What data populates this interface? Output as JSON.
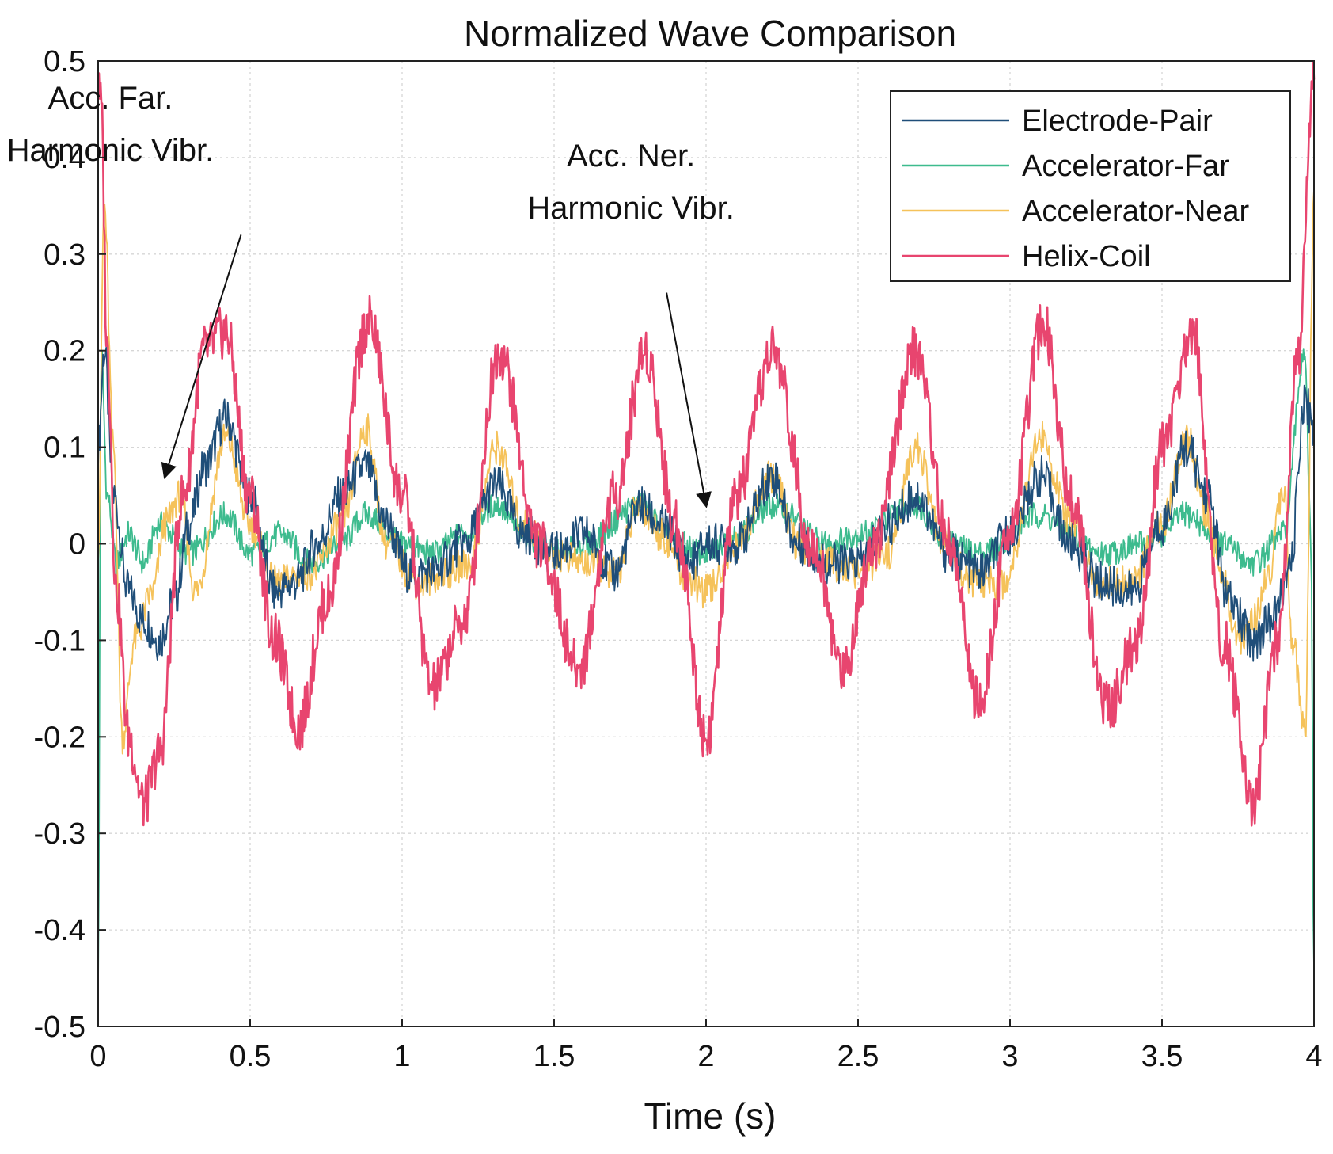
{
  "chart_data": {
    "type": "line",
    "title": "Normalized Wave Comparison",
    "xlabel": "Time (s)",
    "ylabel": "",
    "xlim": [
      0,
      4
    ],
    "ylim": [
      -0.5,
      0.5
    ],
    "grid": true,
    "legend_position": "top-right",
    "x_ticks": [
      0,
      0.5,
      1,
      1.5,
      2,
      2.5,
      3,
      3.5,
      4
    ],
    "x_tick_labels": [
      "0",
      "0.5",
      "1",
      "1.5",
      "2",
      "2.5",
      "3",
      "3.5",
      "4"
    ],
    "y_ticks": [
      0.5,
      0.4,
      0.3,
      0.2,
      0.1,
      0,
      -0.1,
      -0.2,
      -0.3,
      -0.4,
      -0.5
    ],
    "y_tick_labels": [
      "0.5",
      "0.4",
      "0.3",
      "0.2",
      "0.1",
      "0",
      "-0.1",
      "-0.2",
      "-0.3",
      "-0.4",
      "-0.5"
    ],
    "series": [
      {
        "name": "Electrode-Pair",
        "color": "#1f4e79",
        "x": [
          0,
          0.02,
          0.05,
          0.1,
          0.15,
          0.2,
          0.25,
          0.3,
          0.35,
          0.42,
          0.5,
          0.58,
          0.65,
          0.72,
          0.8,
          0.88,
          0.95,
          1.02,
          1.1,
          1.2,
          1.31,
          1.4,
          1.5,
          1.6,
          1.7,
          1.78,
          1.85,
          1.95,
          2.0,
          2.1,
          2.22,
          2.3,
          2.4,
          2.5,
          2.6,
          2.69,
          2.8,
          2.9,
          3.0,
          3.1,
          3.2,
          3.3,
          3.4,
          3.5,
          3.58,
          3.65,
          3.72,
          3.8,
          3.86,
          3.92,
          3.97,
          4.0
        ],
        "values": [
          0.1,
          0.2,
          0.05,
          -0.05,
          -0.08,
          -0.1,
          -0.06,
          0.02,
          0.08,
          0.13,
          0.05,
          -0.05,
          -0.04,
          0.0,
          0.05,
          0.08,
          0.02,
          -0.03,
          -0.03,
          0.0,
          0.06,
          0.01,
          -0.01,
          0.01,
          -0.03,
          0.04,
          0.02,
          -0.02,
          0.0,
          0.0,
          0.07,
          0.0,
          -0.02,
          -0.02,
          0.02,
          0.05,
          -0.01,
          -0.03,
          0.01,
          0.07,
          0.0,
          -0.04,
          -0.05,
          0.02,
          0.1,
          0.05,
          -0.06,
          -0.1,
          -0.08,
          -0.03,
          0.15,
          0.12
        ]
      },
      {
        "name": "Accelerator-Far",
        "color": "#3dbb8e",
        "x": [
          0,
          0.01,
          0.03,
          0.06,
          0.1,
          0.15,
          0.2,
          0.3,
          0.42,
          0.5,
          0.6,
          0.7,
          0.8,
          0.88,
          1.0,
          1.1,
          1.2,
          1.31,
          1.4,
          1.5,
          1.6,
          1.78,
          1.9,
          2.0,
          2.1,
          2.22,
          2.4,
          2.5,
          2.69,
          2.8,
          2.9,
          3.1,
          3.2,
          3.3,
          3.45,
          3.58,
          3.7,
          3.8,
          3.9,
          3.97,
          3.99,
          4.0
        ],
        "values": [
          -0.45,
          0.2,
          0.05,
          -0.02,
          0.01,
          -0.02,
          0.02,
          -0.01,
          0.03,
          -0.01,
          0.01,
          -0.02,
          0.0,
          0.03,
          0.0,
          -0.01,
          0.01,
          0.04,
          0.01,
          -0.01,
          0.0,
          0.04,
          0.0,
          -0.01,
          0.01,
          0.04,
          0.0,
          0.01,
          0.04,
          0.0,
          -0.01,
          0.03,
          0.01,
          -0.01,
          0.0,
          0.03,
          0.0,
          -0.02,
          0.01,
          0.2,
          0.0,
          -0.45
        ]
      },
      {
        "name": "Accelerator-Near",
        "color": "#f5c25a",
        "x": [
          0,
          0.02,
          0.05,
          0.08,
          0.12,
          0.18,
          0.22,
          0.27,
          0.32,
          0.42,
          0.5,
          0.58,
          0.7,
          0.8,
          0.88,
          0.95,
          1.05,
          1.15,
          1.22,
          1.31,
          1.4,
          1.5,
          1.6,
          1.7,
          1.78,
          1.85,
          1.95,
          2.0,
          2.1,
          2.22,
          2.3,
          2.4,
          2.5,
          2.6,
          2.69,
          2.78,
          2.88,
          2.98,
          3.1,
          3.2,
          3.3,
          3.4,
          3.5,
          3.58,
          3.65,
          3.7,
          3.75,
          3.8,
          3.85,
          3.9,
          3.93,
          3.97,
          4.0
        ],
        "values": [
          0.0,
          0.35,
          0.1,
          -0.2,
          -0.1,
          -0.05,
          0.02,
          0.05,
          -0.05,
          0.11,
          0.02,
          -0.04,
          -0.03,
          0.02,
          0.12,
          0.0,
          -0.04,
          -0.03,
          -0.02,
          0.1,
          0.02,
          -0.01,
          -0.02,
          -0.03,
          0.04,
          0.01,
          -0.04,
          -0.05,
          0.0,
          0.07,
          0.0,
          -0.02,
          -0.03,
          -0.01,
          0.1,
          0.0,
          -0.04,
          -0.04,
          0.11,
          0.02,
          -0.04,
          -0.04,
          0.02,
          0.11,
          0.03,
          -0.04,
          -0.1,
          -0.08,
          -0.03,
          0.06,
          -0.1,
          -0.2,
          0.35
        ]
      },
      {
        "name": "Helix-Coil",
        "color": "#e8456f",
        "x": [
          0,
          0.01,
          0.03,
          0.06,
          0.1,
          0.15,
          0.2,
          0.28,
          0.35,
          0.42,
          0.5,
          0.58,
          0.66,
          0.75,
          0.89,
          1.0,
          1.1,
          1.2,
          1.32,
          1.45,
          1.58,
          1.7,
          1.8,
          1.9,
          2.0,
          2.1,
          2.22,
          2.35,
          2.45,
          2.55,
          2.69,
          2.8,
          2.9,
          3.0,
          3.11,
          3.2,
          3.32,
          3.42,
          3.5,
          3.6,
          3.7,
          3.8,
          3.88,
          3.95,
          3.99,
          4.0
        ],
        "values": [
          0.5,
          0.45,
          0.2,
          -0.05,
          -0.2,
          -0.27,
          -0.22,
          0.05,
          0.2,
          0.22,
          0.05,
          -0.1,
          -0.19,
          -0.06,
          0.23,
          0.05,
          -0.15,
          -0.08,
          0.2,
          0.0,
          -0.13,
          0.05,
          0.2,
          0.02,
          -0.2,
          0.05,
          0.2,
          0.0,
          -0.13,
          0.0,
          0.2,
          0.0,
          -0.17,
          0.02,
          0.23,
          0.05,
          -0.17,
          -0.1,
          0.1,
          0.22,
          -0.1,
          -0.27,
          -0.1,
          0.2,
          0.45,
          0.5
        ]
      }
    ],
    "annotations": [
      {
        "lines": [
          "Acc. Far.",
          "Harmonic Vibr."
        ],
        "target_x": 0.22,
        "target_y": 0.07,
        "text_x": 0.47,
        "text_y": 0.4
      },
      {
        "lines": [
          "Acc. Ner.",
          "Harmonic Vibr."
        ],
        "target_x": 2.0,
        "target_y": 0.04,
        "text_x": 1.87,
        "text_y": 0.34
      }
    ]
  }
}
